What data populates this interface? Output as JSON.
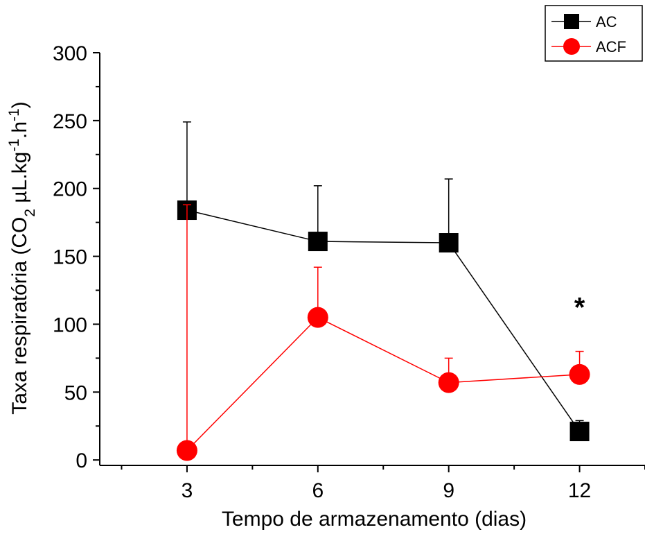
{
  "chart_data": {
    "type": "line",
    "x": [
      3,
      6,
      9,
      12
    ],
    "xticks": [
      "3",
      "6",
      "9",
      "12"
    ],
    "yticks": [
      "0",
      "50",
      "100",
      "150",
      "200",
      "250",
      "300"
    ],
    "xlim": [
      1,
      13.5
    ],
    "ylim": [
      -4,
      300
    ],
    "xlabel": "Tempo de armazenamento (dias)",
    "ylabel_main": "Taxa respiratória (CO",
    "ylabel_sub2": "2",
    "ylabel_mid": " µL.kg",
    "ylabel_sup1": "-1",
    "ylabel_mid2": ".h",
    "ylabel_sup2": "-1",
    "ylabel_end": ")",
    "annotation": {
      "text": "*",
      "x": 12,
      "y": 120
    },
    "legend_position": "top-right",
    "series": [
      {
        "name": "AC",
        "color": "#000000",
        "marker": "square",
        "values": [
          184,
          161,
          160,
          21
        ],
        "errors": [
          65,
          41,
          47,
          8
        ]
      },
      {
        "name": "ACF",
        "color": "#ff0000",
        "marker": "circle",
        "values": [
          7,
          105,
          57,
          63
        ],
        "errors": [
          181,
          37,
          18,
          17
        ]
      }
    ]
  }
}
